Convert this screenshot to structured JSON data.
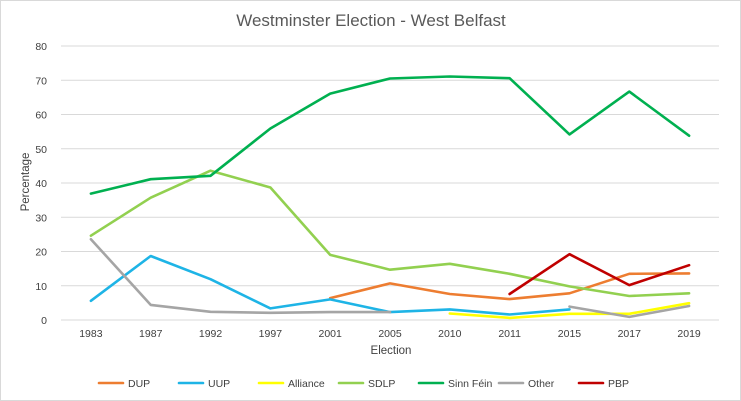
{
  "chart_data": {
    "type": "line",
    "title": "Westminster Election - West Belfast",
    "xlabel": "Election",
    "ylabel": "Percentage",
    "ylim": [
      0,
      80
    ],
    "yticks": [
      0,
      10,
      20,
      30,
      40,
      50,
      60,
      70,
      80
    ],
    "grid": true,
    "legend_position": "bottom",
    "categories": [
      "1983",
      "1987",
      "1992",
      "1997",
      "2001",
      "2005",
      "2010",
      "2011",
      "2015",
      "2017",
      "2019"
    ],
    "series": [
      {
        "name": "DUP",
        "color": "#ED7D31",
        "values": [
          null,
          null,
          null,
          null,
          6.4,
          10.7,
          7.6,
          6.1,
          7.8,
          13.5,
          13.6
        ]
      },
      {
        "name": "UUP",
        "color": "#1EB4E6",
        "values": [
          5.6,
          18.7,
          11.9,
          3.4,
          6.0,
          2.3,
          3.1,
          1.6,
          3.1,
          null,
          null
        ]
      },
      {
        "name": "Alliance",
        "color": "#FFFF00",
        "values": [
          null,
          null,
          null,
          null,
          null,
          null,
          1.9,
          0.6,
          1.8,
          1.8,
          4.9
        ]
      },
      {
        "name": "SDLP",
        "color": "#92D050",
        "values": [
          24.6,
          35.7,
          43.6,
          38.7,
          19.0,
          14.7,
          16.4,
          13.5,
          9.8,
          7.0,
          7.8
        ]
      },
      {
        "name": "Sinn Féin",
        "color": "#00B050",
        "values": [
          36.9,
          41.1,
          42.1,
          55.9,
          66.1,
          70.5,
          71.1,
          70.6,
          54.2,
          66.7,
          53.8
        ]
      },
      {
        "name": "Other",
        "color": "#A5A5A5",
        "values": [
          23.6,
          4.4,
          2.4,
          2.1,
          2.3,
          2.3,
          null,
          null,
          3.9,
          0.9,
          4.1
        ]
      },
      {
        "name": "PBP",
        "color": "#C00000",
        "values": [
          null,
          null,
          null,
          null,
          null,
          null,
          null,
          7.6,
          19.2,
          10.2,
          16.0
        ]
      }
    ]
  }
}
